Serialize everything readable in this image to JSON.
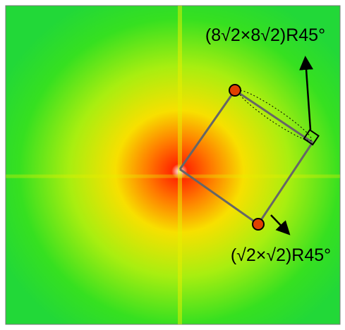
{
  "labels": {
    "top": "(8√2×8√2)R45°",
    "bottom": "(√2×√2)R45°"
  }
}
